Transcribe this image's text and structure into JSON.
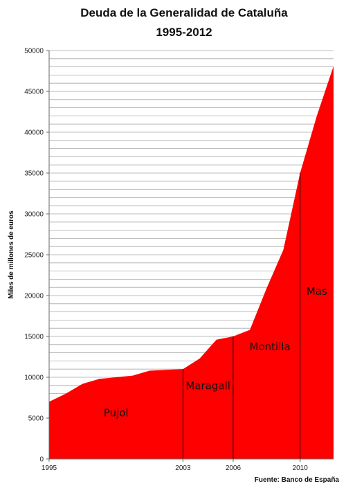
{
  "chart_data": {
    "type": "area",
    "title": "Deuda de la Generalidad de Cataluña",
    "subtitle": "1995-2012",
    "ylabel": "Miles de millones de euros",
    "xlabel": "",
    "source": "Fuente: Banco de España",
    "ylim": [
      0,
      50000
    ],
    "xlim": [
      1995,
      2012
    ],
    "y_ticks": [
      0,
      5000,
      10000,
      15000,
      20000,
      25000,
      30000,
      35000,
      40000,
      45000,
      50000
    ],
    "x_ticks": [
      1995,
      2003,
      2006,
      2010
    ],
    "grid": true,
    "color": "#ff0000",
    "x": [
      1995,
      1996,
      1997,
      1998,
      1999,
      2000,
      2001,
      2002,
      2003,
      2004,
      2005,
      2006,
      2007,
      2008,
      2009,
      2010,
      2011,
      2012
    ],
    "values": [
      7000,
      8000,
      9200,
      9800,
      10000,
      10200,
      10800,
      10900,
      11000,
      12300,
      14600,
      15000,
      15800,
      20900,
      25600,
      35000,
      42000,
      48100
    ],
    "period_dividers": [
      2003,
      2006,
      2010
    ],
    "periods": [
      {
        "label": "Pujol",
        "x": 1999,
        "y": 5200
      },
      {
        "label": "Maragall",
        "x": 2004.5,
        "y": 8500
      },
      {
        "label": "Montilla",
        "x": 2008.2,
        "y": 13300
      },
      {
        "label": "Mas",
        "x": 2011,
        "y": 20100
      }
    ]
  }
}
